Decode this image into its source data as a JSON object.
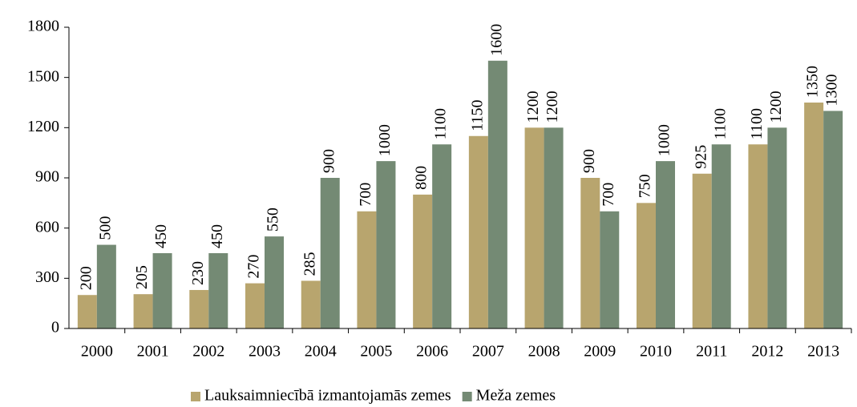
{
  "chart_data": {
    "type": "bar",
    "categories": [
      "2000",
      "2001",
      "2002",
      "2003",
      "2004",
      "2005",
      "2006",
      "2007",
      "2008",
      "2009",
      "2010",
      "2011",
      "2012",
      "2013"
    ],
    "series": [
      {
        "name": "Lauksaimniecībā izmantojamās zemes",
        "color": "#b8a56e",
        "values": [
          200,
          205,
          230,
          270,
          285,
          700,
          800,
          1150,
          1200,
          900,
          750,
          925,
          1100,
          1350
        ]
      },
      {
        "name": "Meža zemes",
        "color": "#748a74",
        "values": [
          500,
          450,
          450,
          550,
          900,
          1000,
          1100,
          1600,
          1200,
          700,
          1000,
          1100,
          1200,
          1300
        ]
      }
    ],
    "ylim": [
      0,
      1800
    ],
    "yticks": [
      0,
      300,
      600,
      900,
      1200,
      1500,
      1800
    ],
    "grid": false,
    "legend": "bottom"
  }
}
